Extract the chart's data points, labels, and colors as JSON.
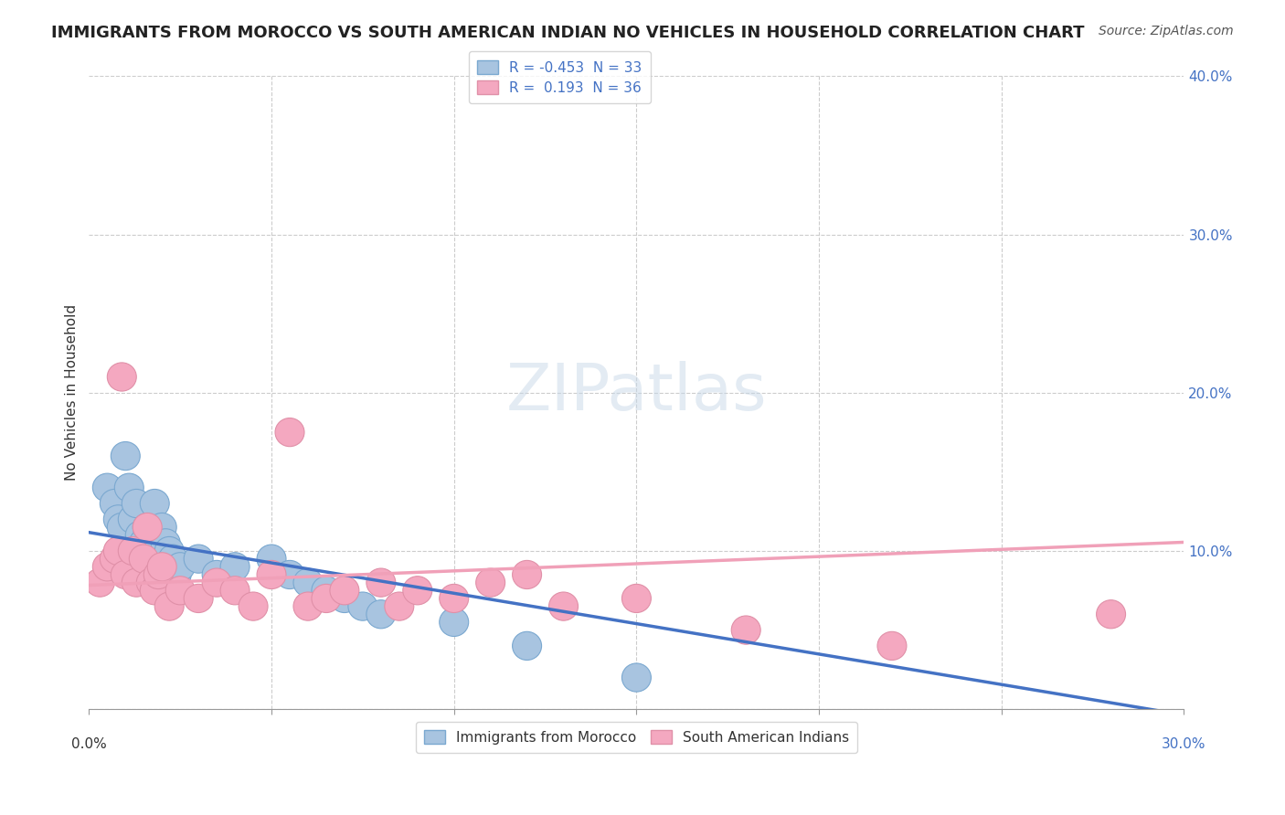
{
  "title": "IMMIGRANTS FROM MOROCCO VS SOUTH AMERICAN INDIAN NO VEHICLES IN HOUSEHOLD CORRELATION CHART",
  "source": "Source: ZipAtlas.com",
  "ylabel": "No Vehicles in Household",
  "xlim": [
    0.0,
    0.3
  ],
  "ylim": [
    0.0,
    0.4
  ],
  "yticks": [
    0.0,
    0.1,
    0.2,
    0.3,
    0.4
  ],
  "ytick_labels": [
    "",
    "10.0%",
    "20.0%",
    "30.0%",
    "40.0%"
  ],
  "watermark": "ZIPatlas",
  "color_morocco": "#a8c4e0",
  "color_sa_indian": "#f4a8c0",
  "line_color_morocco": "#4472c4",
  "line_color_sa_indian": "#f0a0b8",
  "title_color": "#222222",
  "source_color": "#555555",
  "morocco_x": [
    0.005,
    0.007,
    0.008,
    0.009,
    0.01,
    0.011,
    0.012,
    0.013,
    0.014,
    0.015,
    0.016,
    0.017,
    0.018,
    0.019,
    0.02,
    0.021,
    0.022,
    0.023,
    0.024,
    0.025,
    0.03,
    0.035,
    0.04,
    0.05,
    0.055,
    0.06,
    0.065,
    0.07,
    0.075,
    0.08,
    0.1,
    0.12,
    0.15
  ],
  "morocco_y": [
    0.14,
    0.13,
    0.12,
    0.115,
    0.16,
    0.14,
    0.12,
    0.13,
    0.11,
    0.105,
    0.115,
    0.1,
    0.13,
    0.09,
    0.115,
    0.105,
    0.1,
    0.095,
    0.085,
    0.09,
    0.095,
    0.085,
    0.09,
    0.095,
    0.085,
    0.08,
    0.075,
    0.07,
    0.065,
    0.06,
    0.055,
    0.04,
    0.02
  ],
  "sa_x": [
    0.003,
    0.005,
    0.007,
    0.008,
    0.009,
    0.01,
    0.012,
    0.013,
    0.015,
    0.016,
    0.017,
    0.018,
    0.019,
    0.02,
    0.022,
    0.025,
    0.03,
    0.035,
    0.04,
    0.045,
    0.05,
    0.055,
    0.06,
    0.065,
    0.07,
    0.08,
    0.085,
    0.09,
    0.1,
    0.11,
    0.12,
    0.13,
    0.15,
    0.18,
    0.22,
    0.28
  ],
  "sa_y": [
    0.08,
    0.09,
    0.095,
    0.1,
    0.21,
    0.085,
    0.1,
    0.08,
    0.095,
    0.115,
    0.08,
    0.075,
    0.085,
    0.09,
    0.065,
    0.075,
    0.07,
    0.08,
    0.075,
    0.065,
    0.085,
    0.175,
    0.065,
    0.07,
    0.075,
    0.08,
    0.065,
    0.075,
    0.07,
    0.08,
    0.085,
    0.065,
    0.07,
    0.05,
    0.04,
    0.06
  ]
}
